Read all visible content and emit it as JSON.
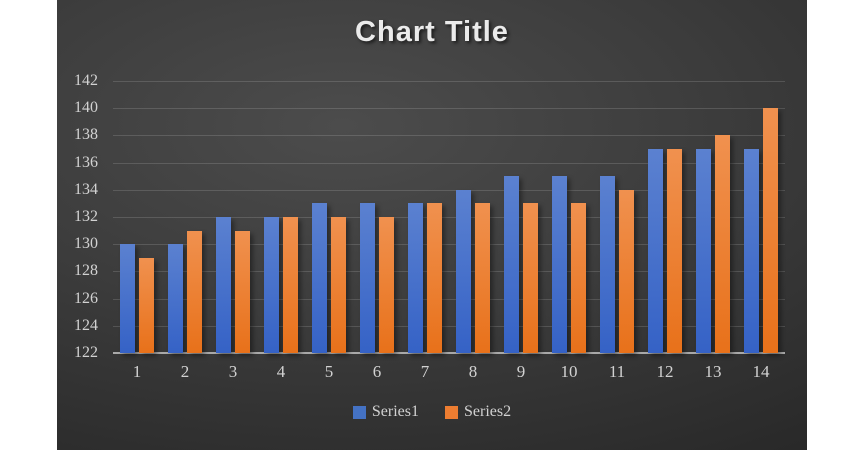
{
  "chart_data": {
    "type": "bar",
    "title": "Chart Title",
    "categories": [
      "1",
      "2",
      "3",
      "4",
      "5",
      "6",
      "7",
      "8",
      "9",
      "10",
      "11",
      "12",
      "13",
      "14"
    ],
    "series": [
      {
        "name": "Series1",
        "color": "#4472C4",
        "values": [
          130,
          130,
          132,
          132,
          133,
          133,
          133,
          134,
          135,
          135,
          135,
          137,
          137,
          137
        ]
      },
      {
        "name": "Series2",
        "color": "#ED7D31",
        "values": [
          129,
          131,
          131,
          132,
          132,
          132,
          133,
          133,
          133,
          133,
          134,
          137,
          138,
          140
        ]
      }
    ],
    "ylim": [
      122,
      142
    ],
    "ytick_step": 2,
    "yticks": [
      122,
      124,
      126,
      128,
      130,
      132,
      134,
      136,
      138,
      140,
      142
    ],
    "grid": true,
    "legend_position": "bottom",
    "xlabel": "",
    "ylabel": ""
  },
  "colors": {
    "page_bg": "#ffffff",
    "slide_bg_center": "#4c4c4c",
    "slide_bg_edge": "#242424",
    "gridline": "rgba(255,255,255,0.14)",
    "axis_line": "#a9a9a9",
    "tick_label": "#d2d2d2",
    "title_text": "#ebebeb",
    "series1_bar_top": "#5b81d0",
    "series1_bar_bottom": "#3562c6",
    "series2_bar_top": "#f0914f",
    "series2_bar_bottom": "#e8711a"
  }
}
